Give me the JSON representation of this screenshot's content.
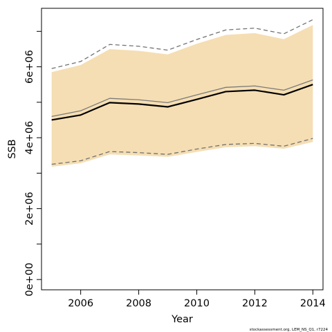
{
  "chart_data": {
    "type": "line",
    "xlabel": "Year",
    "ylabel": "SSB",
    "xlim": [
      2004.65,
      2014.35
    ],
    "ylim": [
      -290000,
      7650000
    ],
    "x_ticks": [
      2006,
      2008,
      2010,
      2012,
      2014
    ],
    "y_ticks": [
      0,
      2000000,
      4000000,
      6000000
    ],
    "y_tick_labels": [
      "0e+00",
      "2e+06",
      "4e+06",
      "6e+06"
    ],
    "y_minor_ticks": [
      1000000,
      3000000,
      5000000,
      7000000
    ],
    "x": [
      2005,
      2006,
      2007,
      2008,
      2009,
      2010,
      2011,
      2012,
      2013,
      2014
    ],
    "band": {
      "lower": [
        3180000,
        3280000,
        3530000,
        3500000,
        3460000,
        3600000,
        3730000,
        3760000,
        3690000,
        3880000
      ],
      "upper": [
        5850000,
        6050000,
        6500000,
        6450000,
        6350000,
        6650000,
        6900000,
        6950000,
        6780000,
        7180000
      ],
      "color": "#f5deb3"
    },
    "series": [
      {
        "role": "estimate",
        "values": [
          4500000,
          4640000,
          4990000,
          4950000,
          4870000,
          5080000,
          5300000,
          5340000,
          5210000,
          5500000
        ],
        "color": "#000000",
        "dash": "solid"
      },
      {
        "role": "reference",
        "values": [
          4600000,
          4760000,
          5110000,
          5070000,
          4990000,
          5210000,
          5420000,
          5460000,
          5340000,
          5630000
        ],
        "color": "#7a7a7a",
        "dash": "solid"
      },
      {
        "role": "upper-bound",
        "values": [
          5950000,
          6150000,
          6630000,
          6580000,
          6470000,
          6770000,
          7040000,
          7090000,
          6930000,
          7330000
        ],
        "color": "#707070",
        "dash": "dashed"
      },
      {
        "role": "lower-bound",
        "values": [
          3250000,
          3350000,
          3610000,
          3580000,
          3530000,
          3680000,
          3810000,
          3840000,
          3760000,
          3980000
        ],
        "color": "#707070",
        "dash": "dashed"
      }
    ]
  },
  "footer": {
    "text": "stockassessment.org, LEM_NS_Q1, r7224"
  }
}
